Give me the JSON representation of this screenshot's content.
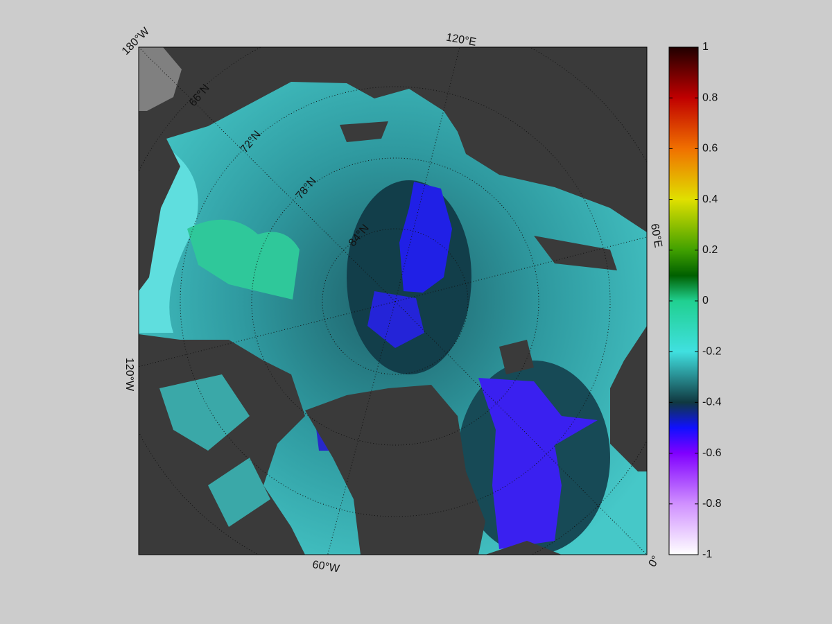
{
  "map": {
    "lon_labels": [
      "180°W",
      "120°E",
      "60°E",
      "0°",
      "60°W",
      "120°W"
    ],
    "lat_labels": [
      "66°N",
      "72°N",
      "78°N",
      "84°N"
    ]
  },
  "colorbar": {
    "ylim": [
      -1,
      1
    ],
    "yticks": [
      1,
      0.8,
      0.6,
      0.4,
      0.2,
      0,
      -0.2,
      -0.4,
      -0.6,
      -0.8,
      -1
    ],
    "colormap": [
      {
        "value": 1,
        "color": "#200000"
      },
      {
        "value": 0.8,
        "color": "#c00000"
      },
      {
        "value": 0.6,
        "color": "#f07000"
      },
      {
        "value": 0.4,
        "color": "#e0e000"
      },
      {
        "value": 0.2,
        "color": "#40a000"
      },
      {
        "value": 0.1,
        "color": "#006000"
      },
      {
        "value": 0,
        "color": "#20d090"
      },
      {
        "value": -0.2,
        "color": "#40e0e0"
      },
      {
        "value": -0.4,
        "color": "#103840"
      },
      {
        "value": -0.5,
        "color": "#1010ff"
      },
      {
        "value": -0.6,
        "color": "#8000ff"
      },
      {
        "value": -0.8,
        "color": "#d090ff"
      },
      {
        "value": -1,
        "color": "#ffffff"
      }
    ]
  }
}
